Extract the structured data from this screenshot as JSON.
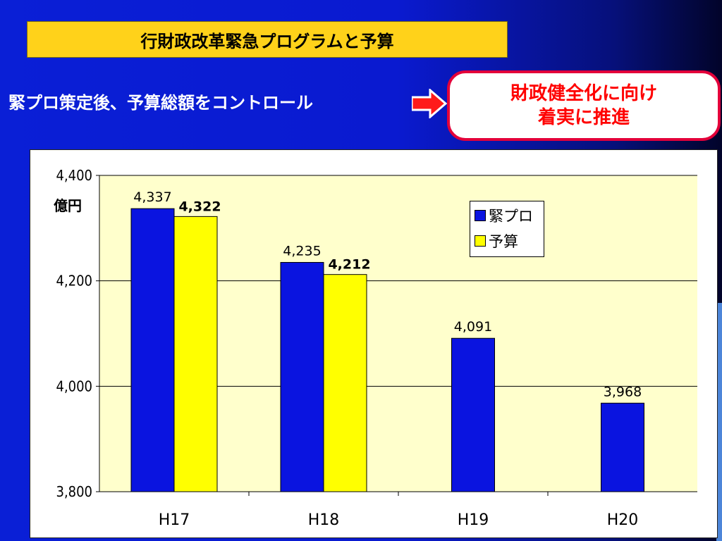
{
  "slide": {
    "title": "行財政改革緊急プログラムと予算",
    "subtitle": "緊プロ策定後、予算総額をコントロール",
    "callout_line1": "財政健全化に向け",
    "callout_line2": "着実に推進"
  },
  "colors": {
    "series_kinpuro": "#0a14e0",
    "series_yosan": "#ffff00",
    "callout_border": "#e3003a",
    "title_bg": "#ffd21a"
  },
  "chart_data": {
    "type": "bar",
    "categories": [
      "H17",
      "H18",
      "H19",
      "H20"
    ],
    "series": [
      {
        "name": "緊プロ",
        "values": [
          4337,
          4235,
          4091,
          3968
        ],
        "labels": [
          "4,337",
          "4,235",
          "4,091",
          "3,968"
        ]
      },
      {
        "name": "予算",
        "values": [
          4322,
          4212,
          null,
          null
        ],
        "labels": [
          "4,322",
          "4,212",
          "",
          ""
        ]
      }
    ],
    "ylabel": "億円",
    "ylim": [
      3800,
      4400
    ],
    "yticks": [
      3800,
      4000,
      4200,
      4400
    ],
    "ytick_labels": [
      "3,800",
      "4,000",
      "4,200",
      "4,400"
    ],
    "grid": true,
    "legend_position": "top-right"
  }
}
